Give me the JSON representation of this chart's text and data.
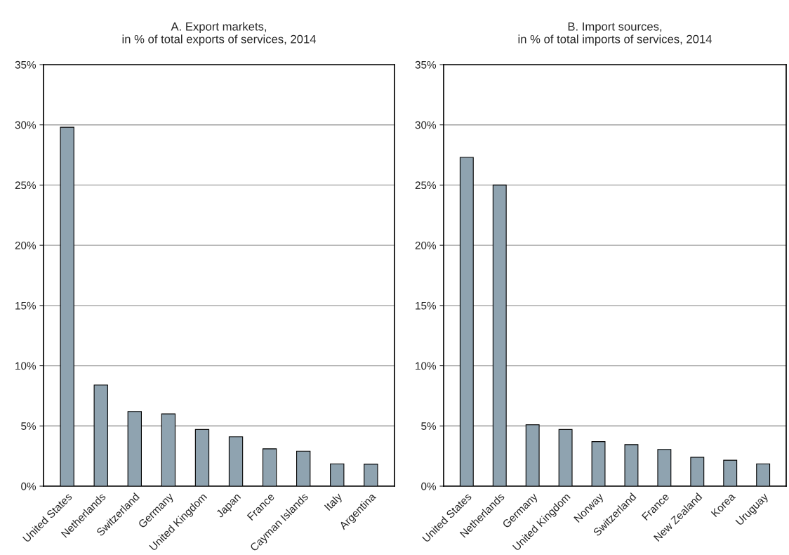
{
  "chart_data": [
    {
      "type": "bar",
      "title": "A. Export markets,\nin % of total exports of services, 2014",
      "categories": [
        "United States",
        "Netherlands",
        "Switzerland",
        "Germany",
        "United Kingdom",
        "Japan",
        "France",
        "Cayman Islands",
        "Italy",
        "Argentina"
      ],
      "values": [
        29.8,
        8.4,
        6.2,
        6.0,
        4.7,
        4.1,
        3.1,
        2.9,
        1.85,
        1.83
      ],
      "color": "#8fa3b0",
      "ylim": [
        0,
        35
      ],
      "yticks": [
        {
          "value": 0,
          "label": "0%"
        },
        {
          "value": 5,
          "label": "5%"
        },
        {
          "value": 10,
          "label": "10%"
        },
        {
          "value": 15,
          "label": "15%"
        },
        {
          "value": 20,
          "label": "20%"
        },
        {
          "value": 25,
          "label": "25%"
        },
        {
          "value": 30,
          "label": "30%"
        },
        {
          "value": 35,
          "label": "35%"
        }
      ],
      "grid": "y"
    },
    {
      "type": "bar",
      "title": "B. Import sources,\nin % of total imports of services, 2014",
      "categories": [
        "United States",
        "Netherlands",
        "Germany",
        "United Kingdom",
        "Norway",
        "Switzerland",
        "France",
        "New Zealand",
        "Korea",
        "Uruguay"
      ],
      "values": [
        27.3,
        25.0,
        5.1,
        4.7,
        3.7,
        3.45,
        3.05,
        2.4,
        2.15,
        1.85
      ],
      "color": "#8fa3b0",
      "ylim": [
        0,
        35
      ],
      "yticks": [
        {
          "value": 0,
          "label": "0%"
        },
        {
          "value": 5,
          "label": "5%"
        },
        {
          "value": 10,
          "label": "10%"
        },
        {
          "value": 15,
          "label": "15%"
        },
        {
          "value": 20,
          "label": "20%"
        },
        {
          "value": 25,
          "label": "25%"
        },
        {
          "value": 30,
          "label": "30%"
        },
        {
          "value": 35,
          "label": "35%"
        }
      ],
      "grid": "y"
    }
  ]
}
